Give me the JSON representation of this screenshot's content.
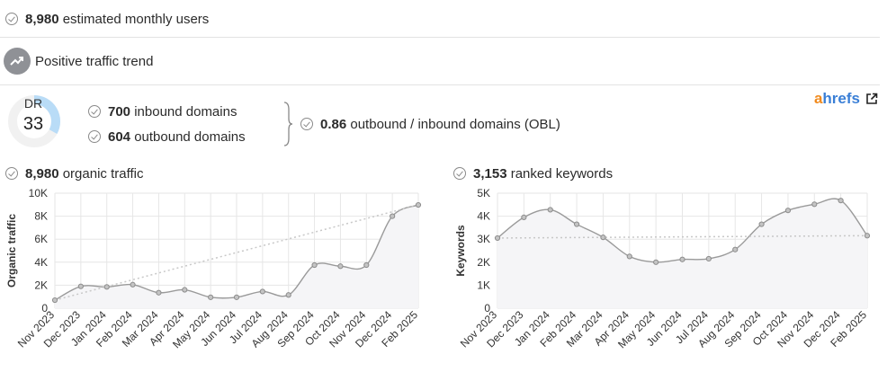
{
  "summary": {
    "users_value": "8,980",
    "users_label": "estimated monthly users",
    "trend_label": "Positive traffic trend"
  },
  "dr": {
    "label": "DR",
    "value": "33",
    "fraction": 0.33,
    "color": "#b9dcf7",
    "track_color": "#f1f1f1"
  },
  "domains": {
    "inbound_value": "700",
    "inbound_label": "inbound domains",
    "outbound_value": "604",
    "outbound_label": "outbound domains",
    "obl_value": "0.86",
    "obl_label": "outbound / inbound domains (OBL)"
  },
  "brand": {
    "a": "a",
    "rest": "hrefs",
    "icon": "external-link-icon"
  },
  "organic": {
    "value": "8,980",
    "label": "organic traffic"
  },
  "keywords": {
    "value": "3,153",
    "label": "ranked keywords"
  },
  "chart_data": [
    {
      "type": "area",
      "ylabel": "Organic traffic",
      "categories": [
        "Nov 2023",
        "Dec 2023",
        "Jan 2024",
        "Feb 2024",
        "Mar 2024",
        "Apr 2024",
        "May 2024",
        "Jun 2024",
        "Jul 2024",
        "Aug 2024",
        "Sep 2024",
        "Oct 2024",
        "Nov 2024",
        "Dec 2024",
        "Feb 2025"
      ],
      "yticks": [
        "0",
        "2K",
        "4K",
        "6K",
        "8K",
        "10K"
      ],
      "ylim": [
        0,
        10000
      ],
      "series": [
        {
          "values": [
            700,
            1900,
            1850,
            2050,
            1350,
            1600,
            950,
            950,
            1450,
            1150,
            3750,
            3650,
            3750,
            8000,
            8980
          ]
        }
      ],
      "trend": [
        700,
        8980
      ],
      "grid": true
    },
    {
      "type": "area",
      "ylabel": "Keywords",
      "categories": [
        "Nov 2023",
        "Dec 2023",
        "Jan 2024",
        "Feb 2024",
        "Mar 2024",
        "Apr 2024",
        "May 2024",
        "Jun 2024",
        "Jul 2024",
        "Aug 2024",
        "Sep 2024",
        "Oct 2024",
        "Nov 2024",
        "Dec 2024",
        "Feb 2025"
      ],
      "yticks": [
        "0",
        "1K",
        "2K",
        "3K",
        "4K",
        "5K"
      ],
      "ylim": [
        0,
        5000
      ],
      "series": [
        {
          "values": [
            3050,
            3950,
            4280,
            3650,
            3080,
            2250,
            2000,
            2120,
            2150,
            2550,
            3650,
            4250,
            4520,
            4680,
            3153
          ]
        }
      ],
      "trend": [
        3050,
        3153
      ],
      "grid": true
    }
  ]
}
